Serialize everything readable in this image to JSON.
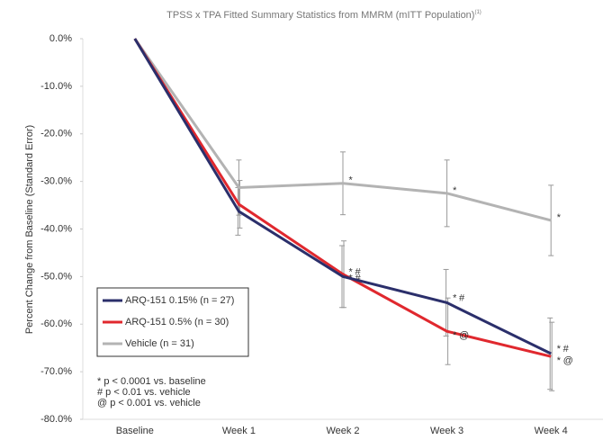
{
  "chart_data": {
    "type": "line",
    "title": "TPSS x TPA Fitted Summary Statistics from MMRM (mITT Population)",
    "title_note": "(1)",
    "y_label": "Percent Change from Baseline (Standard Error)",
    "categories": [
      "Baseline",
      "Week 1",
      "Week 2",
      "Week 3",
      "Week 4"
    ],
    "ylim": [
      -80,
      0
    ],
    "yticks": [
      {
        "value": 0,
        "label": "0.0%"
      },
      {
        "value": -10,
        "label": "-10.0%"
      },
      {
        "value": -20,
        "label": "-20.0%"
      },
      {
        "value": -30,
        "label": "-30.0%"
      },
      {
        "value": -40,
        "label": "-40.0%"
      },
      {
        "value": -50,
        "label": "-50.0%"
      },
      {
        "value": -60,
        "label": "-60.0%"
      },
      {
        "value": -70,
        "label": "-70.0%"
      },
      {
        "value": -80,
        "label": "-80.0%"
      }
    ],
    "series": [
      {
        "name": "ARQ-151 0.15% (n = 27)",
        "color": "#2b2f6b",
        "values": [
          0,
          -36.3,
          -50.0,
          -55.5,
          -66.2
        ],
        "errors": [
          null,
          5,
          6.5,
          7,
          7.5
        ],
        "annotations": [
          null,
          null,
          "* #",
          "* #",
          "* #"
        ]
      },
      {
        "name": "ARQ-151 0.5% (n = 30)",
        "color": "#e0282e",
        "values": [
          0,
          -34.8,
          -49.5,
          -61.5,
          -66.8
        ],
        "errors": [
          null,
          5,
          7,
          7,
          7.2
        ],
        "annotations": [
          null,
          null,
          "* #",
          "* @",
          "* @"
        ]
      },
      {
        "name": "Vehicle (n = 31)",
        "color": "#b3b3b3",
        "values": [
          0,
          -31.3,
          -30.4,
          -32.5,
          -38.2
        ],
        "errors": [
          null,
          5.8,
          6.6,
          7,
          7.4
        ],
        "annotations": [
          null,
          null,
          "*",
          "*",
          "*"
        ]
      }
    ],
    "footnotes": [
      "* p < 0.0001 vs. baseline",
      "# p < 0.01 vs. vehicle",
      "@ p < 0.001 vs. vehicle"
    ]
  }
}
